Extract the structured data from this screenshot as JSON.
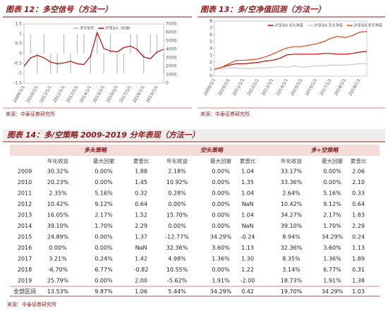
{
  "figure12": {
    "title": "图表 12：多空信号（方法一）",
    "source": "来源：中泰证券研究所",
    "chart_data": {
      "type": "line",
      "categories": [
        "2009/1/1",
        null,
        "2010/1/1",
        null,
        "2011/1/1",
        null,
        "2012/1/1",
        null,
        "2013/1/1",
        null,
        "2014/1/1",
        null,
        "2015/1/1",
        null,
        "2016/1/1",
        null,
        "2017/1/1",
        null,
        "2018/1/1",
        null,
        "2019/1/1",
        null
      ],
      "series": [
        {
          "name": "多空信号",
          "color": "#bbbbbb",
          "axis": "y",
          "style": "bars",
          "values": [
            1,
            1,
            -1,
            1,
            -1,
            -1,
            1,
            -1,
            1,
            1,
            -1,
            1,
            -1,
            1,
            -1,
            -1,
            1,
            1,
            -1,
            1,
            1,
            -1
          ]
        },
        {
          "name": "沪深全A（右轴）",
          "color": "#c00000",
          "axis": "y2",
          "style": "line",
          "values": [
            2000,
            3000,
            3300,
            3000,
            2500,
            2300,
            2400,
            2600,
            2300,
            2200,
            3200,
            6000,
            4100,
            3800,
            3700,
            4200,
            4400,
            4000,
            3100,
            2900,
            3700,
            4000
          ]
        }
      ],
      "ylim": [
        -1.5,
        1.5
      ],
      "yticks": [
        -1.5,
        -1,
        -0.5,
        0,
        0.5,
        1,
        1.5
      ],
      "y2lim": [
        0,
        7000
      ],
      "y2ticks": [
        0,
        1000,
        2000,
        3000,
        4000,
        5000,
        6000,
        7000
      ]
    }
  },
  "figure13": {
    "title": "图表 13：多/空净值回测（方法一）",
    "source": "来源：中泰证券研究所",
    "chart_data": {
      "type": "line",
      "categories": [
        "2009/1/1",
        null,
        "2010/1/1",
        null,
        "2011/1/1",
        null,
        "2012/1/1",
        null,
        "2013/1/1",
        null,
        "2014/1/1",
        null,
        "2015/1/1",
        null,
        "2016/1/1",
        null,
        "2017/1/1",
        null,
        "2018/1/1",
        null,
        "2019/1/1",
        null
      ],
      "series": [
        {
          "name": "沪深全A 多头净值",
          "color": "#c00000",
          "values": [
            1,
            1.3,
            1.6,
            1.8,
            1.8,
            1.9,
            2.0,
            2.2,
            2.3,
            2.6,
            3.1,
            3.2,
            3.2,
            3.2,
            3.2,
            3.3,
            3.3,
            3.2,
            3.2,
            3.3,
            3.5,
            3.6
          ]
        },
        {
          "name": "沪深全A 空头净值",
          "color": "#c8c8c8",
          "values": [
            1,
            1.1,
            1.2,
            1.2,
            1.1,
            1.1,
            1.2,
            1.2,
            1.3,
            1.4,
            1.3,
            1.5,
            1.3,
            1.4,
            1.5,
            1.5,
            1.6,
            1.6,
            1.6,
            1.7,
            1.8,
            1.8
          ]
        },
        {
          "name": "沪深全A 多空净值",
          "color": "#e8421a",
          "values": [
            1,
            1.3,
            1.8,
            2.3,
            2.3,
            2.4,
            2.5,
            2.8,
            3.2,
            3.7,
            4.1,
            4.3,
            4.3,
            4.5,
            4.7,
            5.0,
            5.5,
            5.8,
            5.6,
            5.9,
            6.4,
            6.5
          ]
        }
      ],
      "ylim": [
        0,
        8
      ],
      "yticks": [
        0,
        1,
        2,
        3,
        4,
        5,
        6,
        7,
        8
      ]
    }
  },
  "figure14": {
    "title": "图表 14：多/空策略 2009-2019 分年表现（方法一）",
    "source": "来源：中泰证券研究所",
    "table": {
      "groups": [
        "多头策略",
        "空头策略",
        "多+空策略"
      ],
      "subheaders": [
        "年化收益",
        "最大回撤",
        "夏普比"
      ],
      "rows": [
        [
          "2009",
          "30.32%",
          "0.00%",
          "1.88",
          "2.18%",
          "0.00%",
          "1.04",
          "33.17%",
          "0.00%",
          "2.06"
        ],
        [
          "2010",
          "20.23%",
          "0.00%",
          "1.45",
          "10.92%",
          "0.00%",
          "1.35",
          "33.36%",
          "0.00%",
          "2.10"
        ],
        [
          "2011",
          "2.35%",
          "5.16%",
          "0.32",
          "0.28%",
          "0.00%",
          "1.04",
          "2.64%",
          "5.16%",
          "0.33"
        ],
        [
          "2012",
          "10.42%",
          "9.12%",
          "0.64",
          "0.00%",
          "0.00%",
          "NaN",
          "10.42%",
          "9.12%",
          "0.64"
        ],
        [
          "2013",
          "16.05%",
          "2.17%",
          "1.52",
          "15.70%",
          "0.00%",
          "1.04",
          "34.27%",
          "2.17%",
          "1.83"
        ],
        [
          "2014",
          "39.10%",
          "1.70%",
          "2.29",
          "0.00%",
          "0.00%",
          "NaN",
          "39.10%",
          "1.70%",
          "2.29"
        ],
        [
          "2015",
          "24.89%",
          "0.00%",
          "1.37",
          "-12.77%",
          "34.29%",
          "-0.24",
          "8.94%",
          "34.29%",
          "0.24"
        ],
        [
          "2016",
          "0.00%",
          "0.00%",
          "NaN",
          "32.36%",
          "3.60%",
          "1.13",
          "32.36%",
          "3.60%",
          "1.13"
        ],
        [
          "2017",
          "3.21%",
          "0.24%",
          "1.42",
          "4.98%",
          "1.36%",
          "1.30",
          "8.35%",
          "1.36%",
          "1.89"
        ],
        [
          "2018",
          "-6.70%",
          "6.77%",
          "-0.82",
          "10.55%",
          "0.00%",
          "1.22",
          "3.14%",
          "6.77%",
          "0.31"
        ],
        [
          "2019",
          "25.79%",
          "0.00%",
          "2.00",
          "-5.62%",
          "1.91%",
          "-2.00",
          "18.73%",
          "1.91%",
          "1.38"
        ],
        [
          "全部区间",
          "13.53%",
          "9.87%",
          "1.06",
          "5.44%",
          "34.29%",
          "0.42",
          "19.70%",
          "34.29%",
          "1.03"
        ]
      ]
    }
  }
}
